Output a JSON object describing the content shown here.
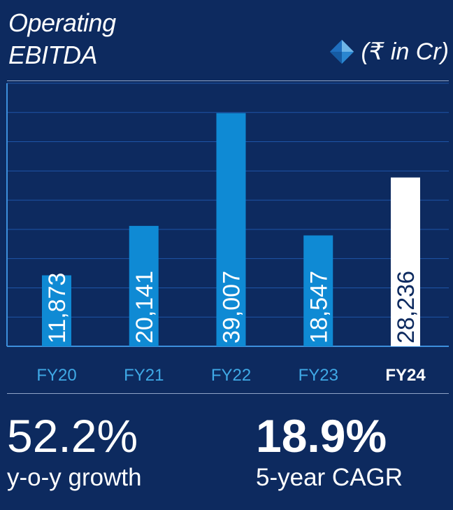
{
  "title_line1": "Operating",
  "title_line2": "EBITDA",
  "unit_label": "(₹ in Cr)",
  "colors": {
    "background": "#0d2a5f",
    "bar": "#0f8ad4",
    "bar_highlight": "#ffffff",
    "category_label": "#3fa9e6",
    "grid": "#1e55a8"
  },
  "chart_data": {
    "type": "bar",
    "categories": [
      "FY20",
      "FY21",
      "FY22",
      "FY23",
      "FY24"
    ],
    "values": [
      11873,
      20141,
      39007,
      18547,
      28236
    ],
    "data_labels": [
      "11,873",
      "20,141",
      "39,007",
      "18,547",
      "28,236"
    ],
    "highlight_category": "FY24",
    "ylim": [
      0,
      44000
    ],
    "grid": true
  },
  "stats": {
    "growth_value": "52.2%",
    "growth_label": "y-o-y growth",
    "cagr_value": "18.9%",
    "cagr_label": "5-year CAGR"
  }
}
